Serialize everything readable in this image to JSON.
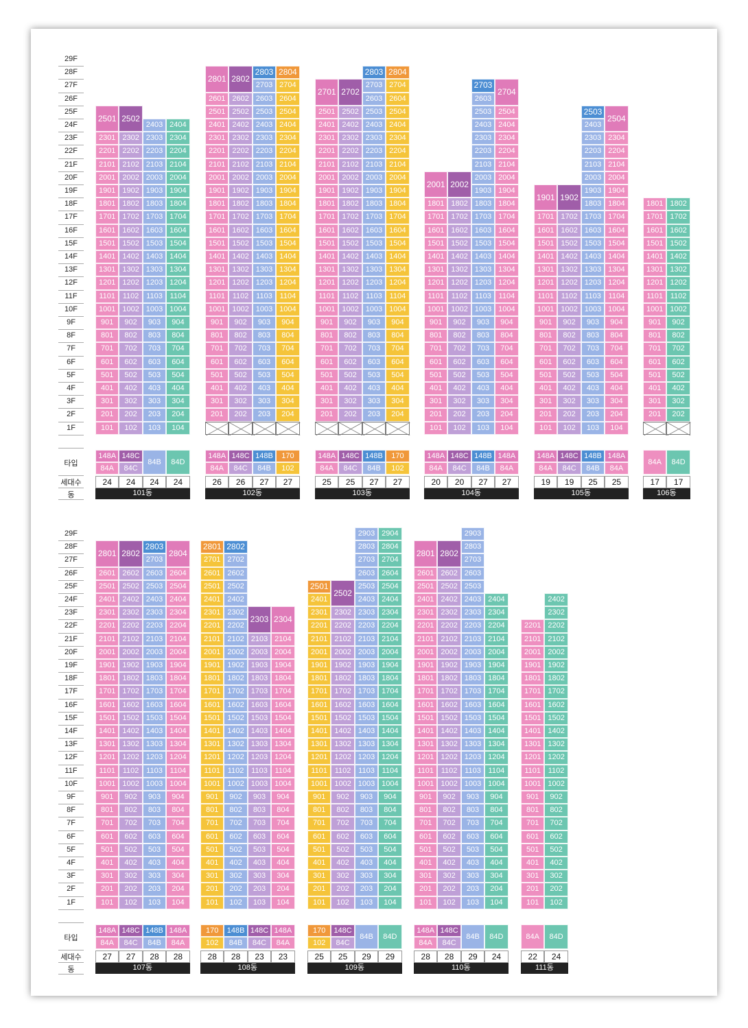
{
  "colors": {
    "148A": "#e07bb9",
    "148C": "#a05ea9",
    "148B": "#4c8ed3",
    "170": "#f0983a",
    "84A": "#ee8fc0",
    "84C": "#bfa0d7",
    "84B": "#9ab4e6",
    "84D": "#6cc6b0",
    "102": "#f5c43a"
  },
  "labels": {
    "type": "타입",
    "households": "세대수",
    "building": "동"
  },
  "floors": [
    "29F",
    "28F",
    "27F",
    "26F",
    "25F",
    "24F",
    "23F",
    "22F",
    "21F",
    "20F",
    "19F",
    "18F",
    "17F",
    "16F",
    "15F",
    "14F",
    "13F",
    "12F",
    "11F",
    "10F",
    "9F",
    "8F",
    "7F",
    "6F",
    "5F",
    "4F",
    "3F",
    "2F",
    "1F"
  ],
  "sections": [
    {
      "buildings": [
        {
          "name": "101동",
          "columns": [
            {
              "line": "01",
              "top": 25,
              "bottom": 1,
              "top_type": "148A",
              "type": "84A",
              "households": "24"
            },
            {
              "line": "02",
              "top": 25,
              "bottom": 1,
              "top_type": "148C",
              "type": "84C",
              "households": "24"
            },
            {
              "line": "03",
              "top": 24,
              "bottom": 1,
              "type": "84B",
              "households": "24"
            },
            {
              "line": "04",
              "top": 24,
              "bottom": 1,
              "type": "84D",
              "households": "24"
            }
          ]
        },
        {
          "name": "102동",
          "columns": [
            {
              "line": "01",
              "top": 28,
              "bottom": 2,
              "top_type": "148A",
              "type": "84A",
              "households": "26"
            },
            {
              "line": "02",
              "top": 28,
              "bottom": 2,
              "top_type": "148C",
              "type": "84C",
              "households": "26"
            },
            {
              "line": "03",
              "top": 28,
              "bottom": 2,
              "top_type": "148B",
              "type": "84B",
              "households": "27"
            },
            {
              "line": "04",
              "top": 28,
              "bottom": 2,
              "top_type": "170",
              "type": "102",
              "households": "27"
            }
          ]
        },
        {
          "name": "103동",
          "columns": [
            {
              "line": "01",
              "top": 27,
              "bottom": 2,
              "top_type": "148A",
              "type": "84A",
              "households": "25"
            },
            {
              "line": "02",
              "top": 27,
              "bottom": 2,
              "top_type": "148C",
              "type": "84C",
              "households": "25"
            },
            {
              "line": "03",
              "top": 28,
              "bottom": 2,
              "top_type": "148B",
              "type": "84B",
              "households": "27"
            },
            {
              "line": "04",
              "top": 28,
              "bottom": 2,
              "top_type": "170",
              "type": "102",
              "households": "27"
            }
          ]
        },
        {
          "name": "104동",
          "columns": [
            {
              "line": "01",
              "top": 20,
              "bottom": 1,
              "top_type": "148A",
              "type": "84A",
              "households": "20"
            },
            {
              "line": "02",
              "top": 20,
              "bottom": 1,
              "top_type": "148C",
              "type": "84C",
              "households": "20"
            },
            {
              "line": "03",
              "top": 27,
              "bottom": 1,
              "top_type": "148B",
              "type": "84B",
              "households": "27"
            },
            {
              "line": "04",
              "top": 27,
              "bottom": 1,
              "top_type": "148A",
              "type": "84A",
              "households": "27"
            }
          ]
        },
        {
          "name": "105동",
          "columns": [
            {
              "line": "01",
              "top": 19,
              "bottom": 1,
              "top_type": "148A",
              "type": "84A",
              "households": "19"
            },
            {
              "line": "02",
              "top": 19,
              "bottom": 1,
              "top_type": "148C",
              "type": "84C",
              "households": "19"
            },
            {
              "line": "03",
              "top": 25,
              "bottom": 1,
              "top_type": "148B",
              "type": "84B",
              "households": "25"
            },
            {
              "line": "04",
              "top": 25,
              "bottom": 1,
              "top_type": "148A",
              "type": "84A",
              "households": "25"
            }
          ]
        },
        {
          "name": "106동",
          "columns": [
            {
              "line": "01",
              "top": 18,
              "bottom": 2,
              "type": "84A",
              "households": "17"
            },
            {
              "line": "02",
              "top": 18,
              "bottom": 2,
              "type": "84D",
              "households": "17"
            }
          ]
        }
      ]
    },
    {
      "buildings": [
        {
          "name": "107동",
          "columns": [
            {
              "line": "01",
              "top": 28,
              "bottom": 1,
              "top_type": "148A",
              "type": "84A",
              "households": "27"
            },
            {
              "line": "02",
              "top": 28,
              "bottom": 1,
              "top_type": "148C",
              "type": "84C",
              "households": "27"
            },
            {
              "line": "03",
              "top": 28,
              "bottom": 1,
              "top_type": "148B",
              "type": "84B",
              "households": "28"
            },
            {
              "line": "04",
              "top": 28,
              "bottom": 1,
              "top_type": "148A",
              "type": "84A",
              "households": "28"
            }
          ]
        },
        {
          "name": "108동",
          "columns": [
            {
              "line": "01",
              "top": 28,
              "bottom": 1,
              "top_type": "170",
              "type": "102",
              "households": "28"
            },
            {
              "line": "02",
              "top": 28,
              "bottom": 1,
              "top_type": "148B",
              "type": "84B",
              "households": "28"
            },
            {
              "line": "03",
              "top": 23,
              "bottom": 1,
              "top_type": "148C",
              "type": "84C",
              "households": "23"
            },
            {
              "line": "04",
              "top": 23,
              "bottom": 1,
              "top_type": "148A",
              "type": "84A",
              "households": "23"
            }
          ]
        },
        {
          "name": "109동",
          "columns": [
            {
              "line": "01",
              "top": 25,
              "bottom": 1,
              "top_type": "170",
              "type": "102",
              "households": "25"
            },
            {
              "line": "02",
              "top": 25,
              "bottom": 1,
              "top_type": "148C",
              "type": "84C",
              "households": "25"
            },
            {
              "line": "03",
              "top": 29,
              "bottom": 1,
              "type": "84B",
              "households": "29"
            },
            {
              "line": "04",
              "top": 29,
              "bottom": 1,
              "type": "84D",
              "households": "29"
            }
          ]
        },
        {
          "name": "110동",
          "columns": [
            {
              "line": "01",
              "top": 28,
              "bottom": 1,
              "top_type": "148A",
              "type": "84A",
              "households": "28"
            },
            {
              "line": "02",
              "top": 28,
              "bottom": 1,
              "top_type": "148C",
              "type": "84C",
              "households": "28"
            },
            {
              "line": "03",
              "top": 29,
              "bottom": 1,
              "type": "84B",
              "households": "29"
            },
            {
              "line": "04",
              "top": 24,
              "bottom": 1,
              "type": "84D",
              "households": "24"
            }
          ]
        },
        {
          "name": "111동",
          "columns": [
            {
              "line": "01",
              "top": 22,
              "bottom": 1,
              "type": "84A",
              "households": "22"
            },
            {
              "line": "02",
              "top": 24,
              "bottom": 1,
              "type": "84D",
              "households": "24"
            }
          ]
        }
      ]
    }
  ]
}
